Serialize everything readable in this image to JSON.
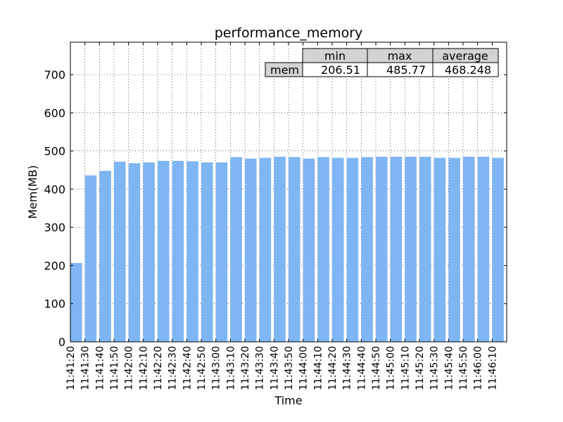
{
  "chart_data": {
    "type": "bar",
    "title": "performance_memory",
    "xlabel": "Time",
    "ylabel": "Mem(MB)",
    "ylim": [
      0,
      785
    ],
    "yticks": [
      0,
      100,
      200,
      300,
      400,
      500,
      600,
      700
    ],
    "grid": true,
    "bar_color": "#7eb6f3",
    "categories": [
      "11:41:20",
      "11:41:30",
      "11:41:40",
      "11:41:50",
      "11:42:00",
      "11:42:10",
      "11:42:20",
      "11:42:30",
      "11:42:40",
      "11:42:50",
      "11:43:00",
      "11:43:10",
      "11:43:20",
      "11:43:30",
      "11:43:40",
      "11:43:50",
      "11:44:00",
      "11:44:10",
      "11:44:20",
      "11:44:30",
      "11:44:40",
      "11:44:50",
      "11:45:00",
      "11:45:10",
      "11:45:20",
      "11:45:30",
      "11:45:40",
      "11:45:50",
      "11:46:00",
      "11:46:10"
    ],
    "values": [
      206.51,
      436,
      448,
      472,
      468,
      470,
      474,
      474,
      473,
      470,
      470,
      484,
      480,
      482,
      485,
      484,
      480,
      484,
      482,
      482,
      484,
      485,
      485,
      485,
      485,
      482,
      482,
      485,
      485,
      482
    ],
    "summary_table": {
      "col_labels": [
        "min",
        "max",
        "average"
      ],
      "row_label": "mem",
      "cells": [
        "206.51",
        "485.77",
        "468.248"
      ],
      "header_color": "#d3d3d3"
    }
  }
}
